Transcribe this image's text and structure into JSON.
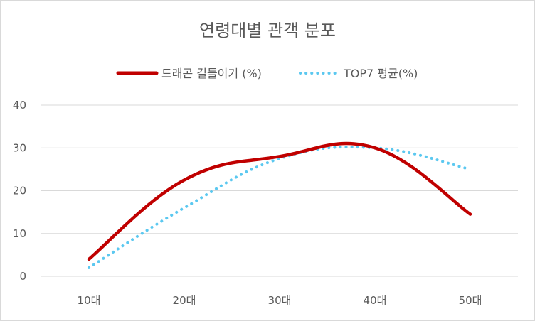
{
  "chart_data": {
    "type": "line",
    "title": "연령대별 관객 분포",
    "categories": [
      "10대",
      "20대",
      "30대",
      "40대",
      "50대"
    ],
    "series": [
      {
        "name": "드래곤 길들이기 (%)",
        "values": [
          4,
          22.5,
          28,
          30,
          14.5
        ],
        "color": "#c00000",
        "style": "solid"
      },
      {
        "name": "TOP7 평균(%)",
        "values": [
          2,
          16,
          27.5,
          30,
          25
        ],
        "color": "#5bc8f0",
        "style": "dotted"
      }
    ],
    "ylim": [
      0,
      40
    ],
    "yticks": [
      "0",
      "10",
      "20",
      "30",
      "40"
    ],
    "xlabel": "",
    "ylabel": "",
    "grid": true,
    "legend": "top"
  }
}
